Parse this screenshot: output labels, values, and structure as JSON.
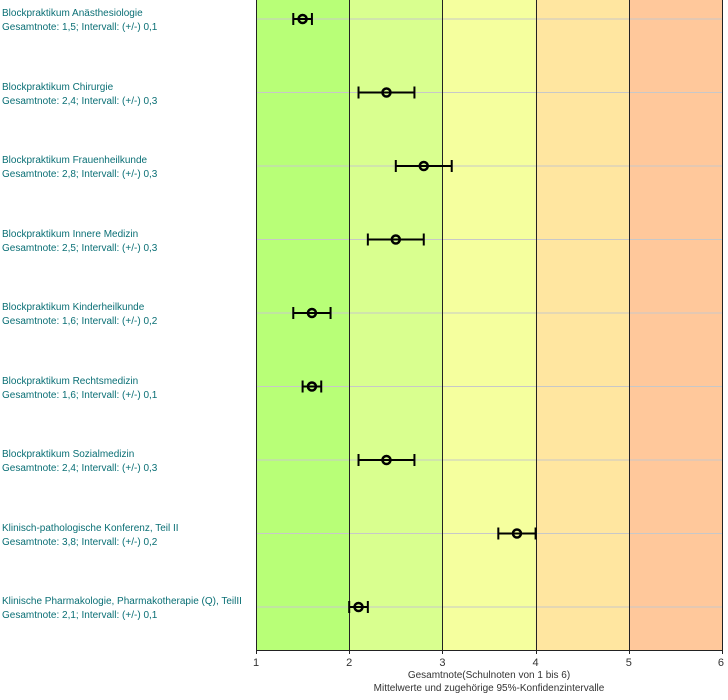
{
  "chart_data": {
    "type": "scatter",
    "xlabel": "Gesamtnote(Schulnoten von 1 bis 6)",
    "xlabel_sub": "Mittelwerte und zugehörige 95%-Konfidenzintervalle",
    "xlim": [
      1,
      6
    ],
    "x_ticks": [
      "1",
      "2",
      "3",
      "4",
      "5",
      "6"
    ],
    "grade_bands": [
      {
        "from": 1,
        "to": 2,
        "color": "#b8ff77"
      },
      {
        "from": 2,
        "to": 3,
        "color": "#d9ff8f"
      },
      {
        "from": 3,
        "to": 4,
        "color": "#f5ff9e"
      },
      {
        "from": 4,
        "to": 5,
        "color": "#ffe6a0"
      },
      {
        "from": 5,
        "to": 6,
        "color": "#ffc89b"
      }
    ],
    "items": [
      {
        "name": "Blockpraktikum Anästhesiologie",
        "summary": "Gesamtnote: 1,5;  Intervall: (+/-) 0,1",
        "mean": 1.5,
        "ci": 0.1
      },
      {
        "name": "Blockpraktikum Chirurgie",
        "summary": "Gesamtnote: 2,4;  Intervall: (+/-) 0,3",
        "mean": 2.4,
        "ci": 0.3
      },
      {
        "name": "Blockpraktikum Frauenheilkunde",
        "summary": "Gesamtnote: 2,8;  Intervall: (+/-) 0,3",
        "mean": 2.8,
        "ci": 0.3
      },
      {
        "name": "Blockpraktikum Innere Medizin",
        "summary": "Gesamtnote: 2,5;  Intervall: (+/-) 0,3",
        "mean": 2.5,
        "ci": 0.3
      },
      {
        "name": "Blockpraktikum Kinderheilkunde",
        "summary": "Gesamtnote: 1,6;  Intervall: (+/-) 0,2",
        "mean": 1.6,
        "ci": 0.2
      },
      {
        "name": "Blockpraktikum Rechtsmedizin",
        "summary": "Gesamtnote: 1,6;  Intervall: (+/-) 0,1",
        "mean": 1.6,
        "ci": 0.1
      },
      {
        "name": "Blockpraktikum Sozialmedizin",
        "summary": "Gesamtnote: 2,4;  Intervall: (+/-) 0,3",
        "mean": 2.4,
        "ci": 0.3
      },
      {
        "name": "Klinisch-pathologische Konferenz, Teil II",
        "summary": "Gesamtnote: 3,8;  Intervall: (+/-) 0,2",
        "mean": 3.8,
        "ci": 0.2
      },
      {
        "name": "Klinische Pharmakologie, Pharmakotherapie (Q), TeilII",
        "summary": "Gesamtnote: 2,1;  Intervall: (+/-) 0,1",
        "mean": 2.1,
        "ci": 0.1
      }
    ]
  }
}
